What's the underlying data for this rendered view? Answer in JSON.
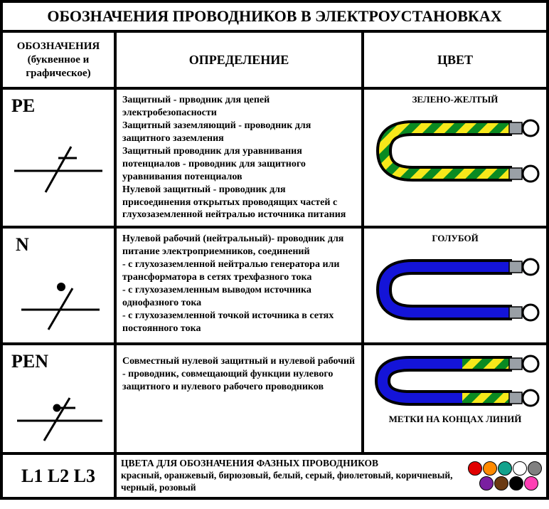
{
  "title": "ОБОЗНАЧЕНИЯ ПРОВОДНИКОВ В ЭЛЕКТРОУСТАНОВКАХ",
  "headers": {
    "col1": "ОБОЗНАЧЕНИЯ\n(буквенное и\nграфическое)",
    "col2": "ОПРЕДЕЛЕНИЕ",
    "col3": "ЦВЕТ"
  },
  "rows": {
    "pe": {
      "label": "PE",
      "definition": "Защитный - прводник для цепей электробезопасности\nЗащитный заземляющий - проводник для защитного заземления\nЗащитный проводник для уравнивания потенциалов - проводник для защитного уравнивания потенциалов\nНулевой защитный - проводник для присоединения открытых проводящих частей с глухозаземленной нейтралью источника питания",
      "color_label": "ЗЕЛЕНО-ЖЕЛТЫЙ",
      "cable_style": "green-yellow-stripe",
      "symbol": "pe"
    },
    "n": {
      "label": "N",
      "definition": "Нулевой рабочий (нейтральный)- проводник для питание электроприемников, соединений\n- с глухозаземленной нейтралью генератора или трансформатора в сетях трехфазного тока\n- с глухозаземленным выводом источника однофазного тока\n- с глухозаземленной точкой источника в сетях постоянного тока",
      "color_label": "ГОЛУБОЙ",
      "cable_style": "blue",
      "symbol": "n"
    },
    "pen": {
      "label": "PEN",
      "definition": "Совместный нулевой защитный и нулевой рабочий - проводник, совмещающий функции нулевого защитного и нулевого рабочего проводников",
      "color_label": "МЕТКИ НА КОНЦАХ ЛИНИЙ",
      "cable_style": "blue-gy-ends",
      "symbol": "pen"
    }
  },
  "phase": {
    "label": "L1 L2 L3",
    "text_title": "ЦВЕТА ДЛЯ ОБОЗНАЧЕНИЯ ФАЗНЫХ ПРОВОДНИКОВ",
    "text_colors": "красный, оранжевый, бирюзовый, белый, серый, фиолетовый, коричневый, черный, розовый",
    "swatches_row1": [
      "#e10000",
      "#ff8a00",
      "#12a28c",
      "#ffffff",
      "#808080"
    ],
    "swatches_row2": [
      "#7a1fa0",
      "#6b3a12",
      "#000000",
      "#ff3fb4"
    ]
  },
  "colors": {
    "green": "#0a8a22",
    "yellow": "#f7e81a",
    "blue": "#1414d8",
    "black": "#000000",
    "white": "#ffffff",
    "terminal_ring": "#9aa0a6"
  },
  "stroke": {
    "cable_width": 14,
    "symbol_line": 3
  }
}
